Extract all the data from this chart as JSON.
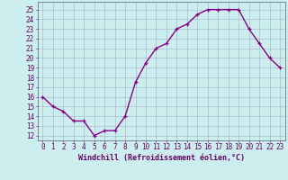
{
  "x": [
    0,
    1,
    2,
    3,
    4,
    5,
    6,
    7,
    8,
    9,
    10,
    11,
    12,
    13,
    14,
    15,
    16,
    17,
    18,
    19,
    20,
    21,
    22,
    23
  ],
  "y": [
    16,
    15,
    14.5,
    13.5,
    13.5,
    12,
    12.5,
    12.5,
    14,
    17.5,
    19.5,
    21,
    21.5,
    23,
    23.5,
    24.5,
    25,
    25,
    25,
    25,
    23,
    21.5,
    20,
    19
  ],
  "line_color": "#880088",
  "marker": "+",
  "bg_color": "#cceeee",
  "grid_color": "#aabbcc",
  "xlabel": "Windchill (Refroidissement éolien,°C)",
  "ylabel_ticks": [
    12,
    13,
    14,
    15,
    16,
    17,
    18,
    19,
    20,
    21,
    22,
    23,
    24,
    25
  ],
  "ylim": [
    11.5,
    25.8
  ],
  "xlim": [
    -0.5,
    23.5
  ],
  "tick_fontsize": 5.5,
  "xlabel_fontsize": 6.0,
  "line_width": 1.0,
  "marker_size": 3.5,
  "marker_edge_width": 0.9
}
